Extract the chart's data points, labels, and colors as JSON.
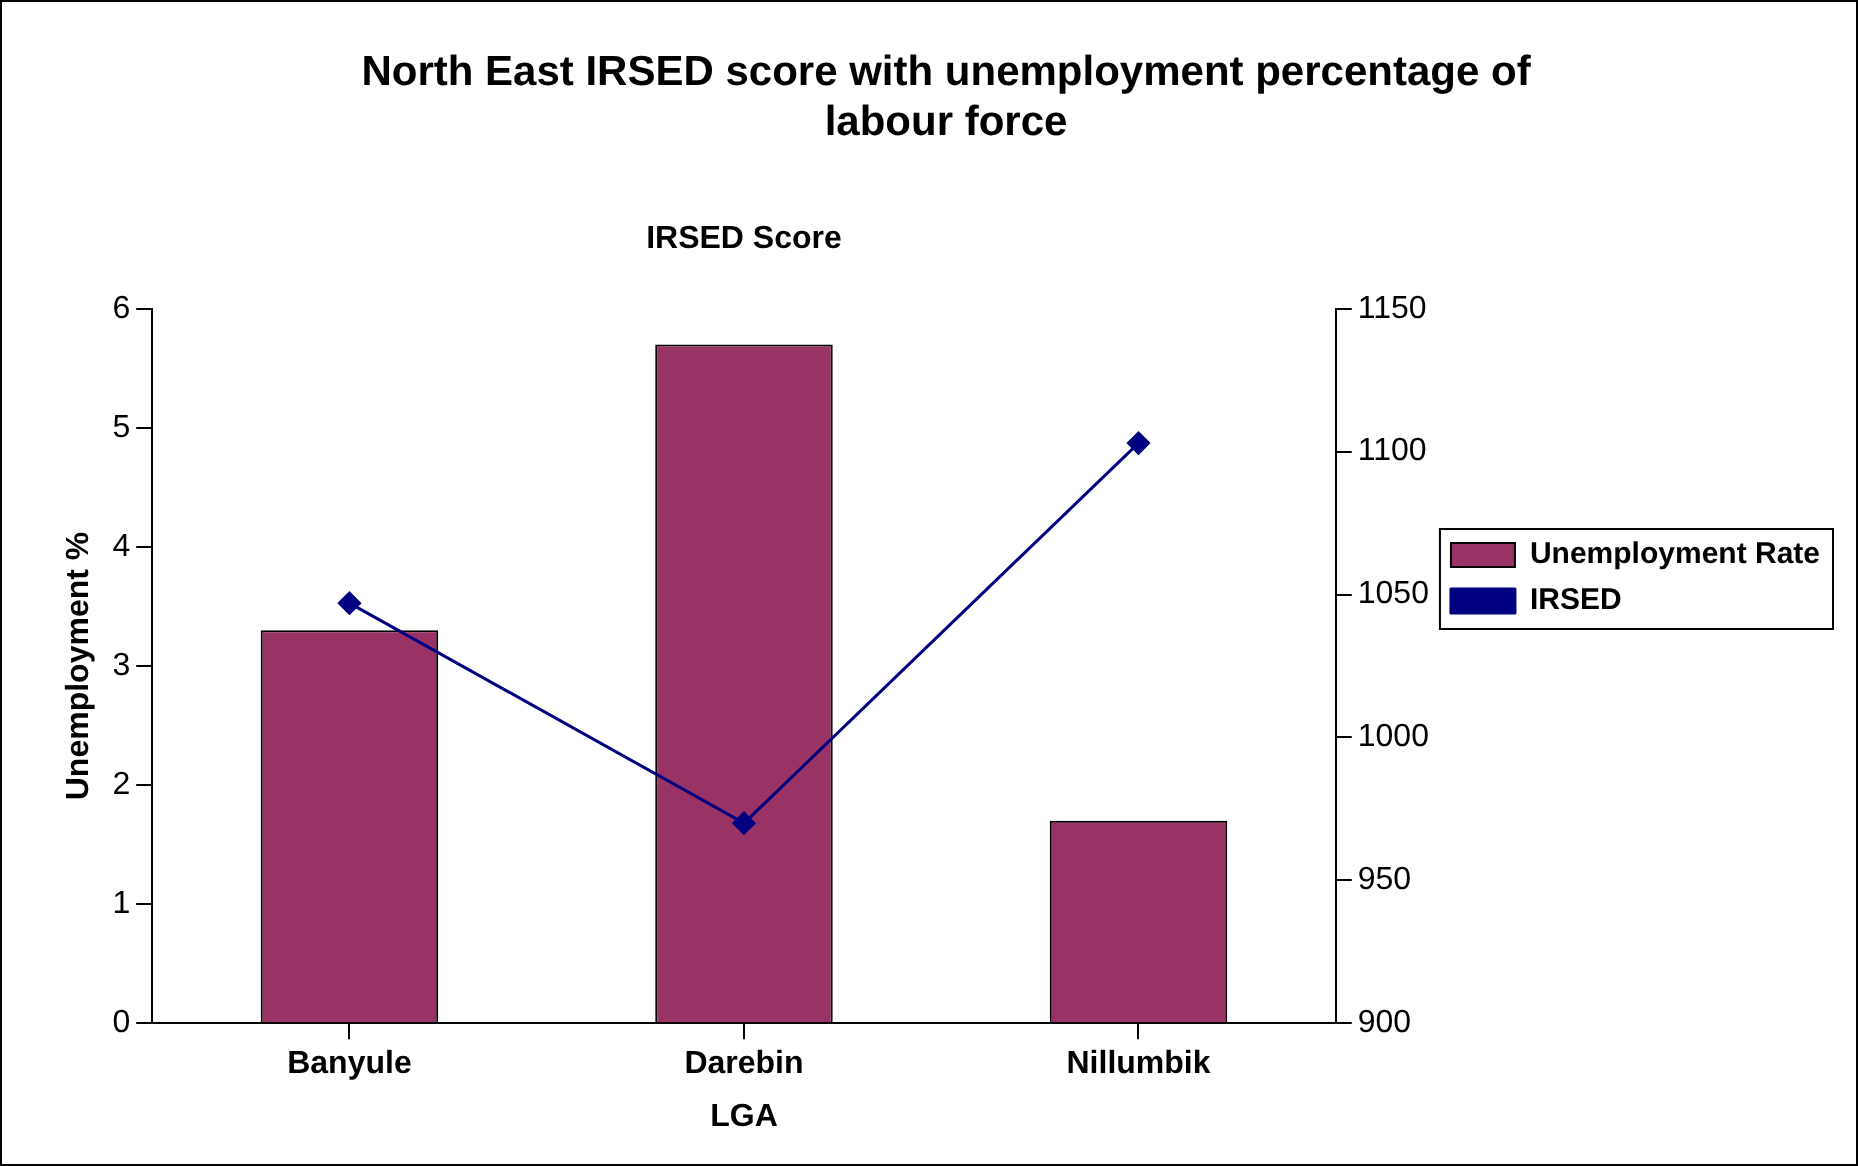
{
  "chart_data": {
    "type": "bar",
    "title": "North East IRSED score with unemployment percentage of labour force",
    "xlabel": "LGA",
    "ylabel": "Unemployment %",
    "annotations": [
      "IRSED Score"
    ],
    "categories": [
      "Banyule",
      "Darebin",
      "Nillumbik"
    ],
    "series": [
      {
        "name": "Unemployment Rate",
        "color": "#993366",
        "values": [
          3.3,
          5.7,
          1.7
        ]
      },
      {
        "name": "IRSED",
        "type": "line",
        "axis": "y2",
        "color": "#000080",
        "values": [
          1047,
          970,
          1103
        ]
      }
    ],
    "ylim": [
      0,
      6
    ],
    "yticks": [
      0,
      1,
      2,
      3,
      4,
      5,
      6
    ],
    "y2lim": [
      900,
      1150
    ],
    "y2ticks": [
      900,
      950,
      1000,
      1050,
      1100,
      1150
    ],
    "grid": false,
    "legend": "right",
    "marker": "diamond",
    "line_style": "solid"
  }
}
